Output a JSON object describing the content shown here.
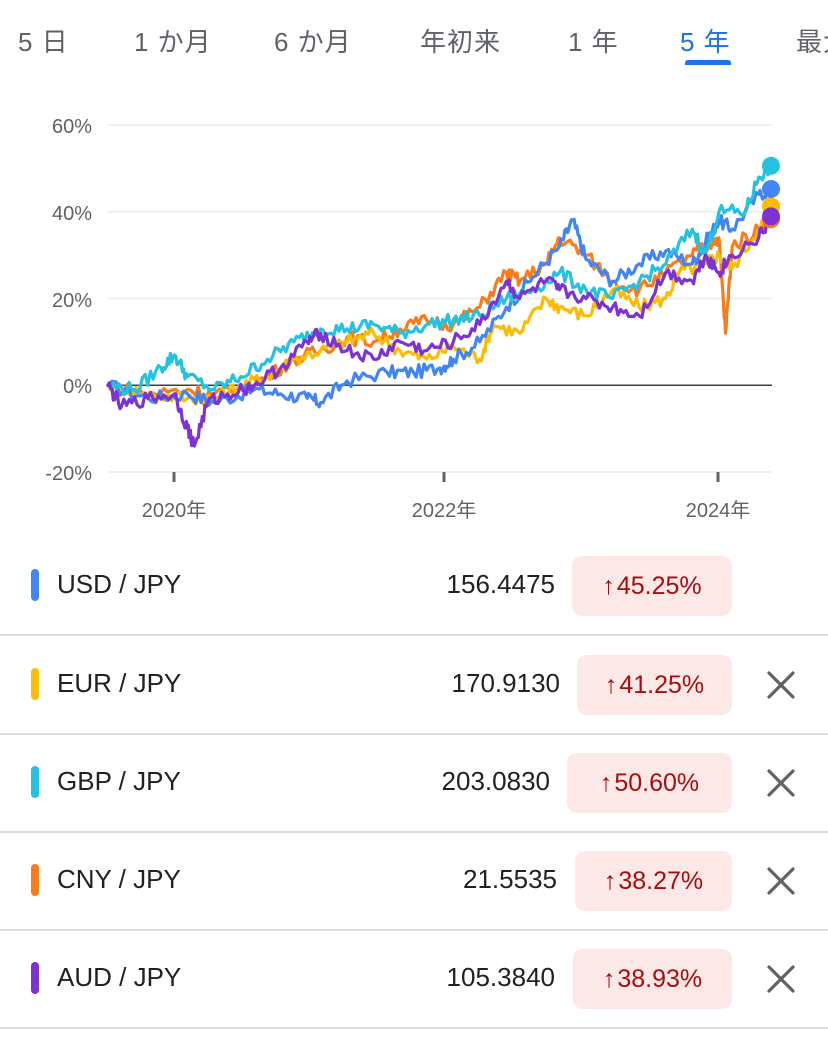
{
  "tabs": [
    "5 日",
    "1 か月",
    "6 か月",
    "年初来",
    "1 年",
    "5 年",
    "最大"
  ],
  "active_tab": "5 年",
  "colors": {
    "usd": "#4285f4",
    "eur": "#fbbc04",
    "gbp": "#24c1e0",
    "cny": "#fa7b17",
    "aud": "#7e32d3",
    "badge_bg": "#fce8e6",
    "badge_text": "#a50e0e",
    "active": "#1a73e8"
  },
  "chart_data": {
    "type": "line",
    "x_ticks": [
      "2020年",
      "2022年",
      "2024年"
    ],
    "y_ticks": [
      "60%",
      "40%",
      "20%",
      "0%",
      "-20%"
    ],
    "ylim": [
      -20,
      60
    ],
    "xlim": [
      2019.4,
      2024.4
    ],
    "grid": true,
    "series": [
      {
        "name": "USD / JPY",
        "color": "#4285f4",
        "points": [
          [
            2019.4,
            0
          ],
          [
            2019.7,
            -3
          ],
          [
            2020.0,
            -2
          ],
          [
            2020.2,
            -4
          ],
          [
            2020.5,
            -1
          ],
          [
            2020.7,
            -2
          ],
          [
            2020.9,
            -3
          ],
          [
            2021.0,
            -4
          ],
          [
            2021.2,
            1
          ],
          [
            2021.5,
            3
          ],
          [
            2021.7,
            3
          ],
          [
            2021.9,
            4
          ],
          [
            2022.0,
            6
          ],
          [
            2022.2,
            10
          ],
          [
            2022.4,
            18
          ],
          [
            2022.6,
            25
          ],
          [
            2022.8,
            32
          ],
          [
            2022.9,
            38
          ],
          [
            2023.0,
            29
          ],
          [
            2023.2,
            24
          ],
          [
            2023.4,
            28
          ],
          [
            2023.6,
            31
          ],
          [
            2023.8,
            28
          ],
          [
            2023.9,
            33
          ],
          [
            2024.0,
            38
          ],
          [
            2024.1,
            36
          ],
          [
            2024.3,
            44
          ],
          [
            2024.4,
            45.25
          ]
        ]
      },
      {
        "name": "EUR / JPY",
        "color": "#fbbc04",
        "points": [
          [
            2019.4,
            0
          ],
          [
            2019.7,
            -2
          ],
          [
            2020.0,
            -3
          ],
          [
            2020.2,
            -3
          ],
          [
            2020.4,
            0
          ],
          [
            2020.6,
            2
          ],
          [
            2020.8,
            6
          ],
          [
            2021.0,
            8
          ],
          [
            2021.2,
            10
          ],
          [
            2021.4,
            12
          ],
          [
            2021.6,
            8
          ],
          [
            2021.8,
            6
          ],
          [
            2022.0,
            9
          ],
          [
            2022.2,
            6
          ],
          [
            2022.3,
            14
          ],
          [
            2022.5,
            12
          ],
          [
            2022.7,
            20
          ],
          [
            2022.8,
            18
          ],
          [
            2023.0,
            16
          ],
          [
            2023.2,
            22
          ],
          [
            2023.4,
            18
          ],
          [
            2023.6,
            20
          ],
          [
            2023.7,
            26
          ],
          [
            2023.9,
            28
          ],
          [
            2024.0,
            30
          ],
          [
            2024.1,
            27
          ],
          [
            2024.3,
            36
          ],
          [
            2024.4,
            41.25
          ]
        ]
      },
      {
        "name": "GBP / JPY",
        "color": "#24c1e0",
        "points": [
          [
            2019.4,
            0
          ],
          [
            2019.6,
            -1
          ],
          [
            2019.8,
            4
          ],
          [
            2019.9,
            7
          ],
          [
            2020.0,
            2
          ],
          [
            2020.2,
            -1
          ],
          [
            2020.4,
            2
          ],
          [
            2020.6,
            6
          ],
          [
            2020.8,
            10
          ],
          [
            2021.0,
            13
          ],
          [
            2021.2,
            13
          ],
          [
            2021.4,
            14
          ],
          [
            2021.6,
            12
          ],
          [
            2021.8,
            14
          ],
          [
            2022.0,
            15
          ],
          [
            2022.2,
            16
          ],
          [
            2022.4,
            20
          ],
          [
            2022.6,
            22
          ],
          [
            2022.8,
            26
          ],
          [
            2023.0,
            22
          ],
          [
            2023.2,
            20
          ],
          [
            2023.4,
            24
          ],
          [
            2023.6,
            28
          ],
          [
            2023.8,
            36
          ],
          [
            2023.9,
            30
          ],
          [
            2024.0,
            40
          ],
          [
            2024.2,
            40
          ],
          [
            2024.3,
            48
          ],
          [
            2024.4,
            50.6
          ]
        ]
      },
      {
        "name": "CNY / JPY",
        "color": "#fa7b17",
        "points": [
          [
            2019.4,
            0
          ],
          [
            2019.7,
            -2
          ],
          [
            2020.0,
            -1
          ],
          [
            2020.2,
            -2
          ],
          [
            2020.4,
            -1
          ],
          [
            2020.6,
            2
          ],
          [
            2020.8,
            6
          ],
          [
            2021.0,
            8
          ],
          [
            2021.2,
            11
          ],
          [
            2021.4,
            10
          ],
          [
            2021.6,
            13
          ],
          [
            2021.8,
            15
          ],
          [
            2022.0,
            14
          ],
          [
            2022.2,
            18
          ],
          [
            2022.4,
            26
          ],
          [
            2022.5,
            24
          ],
          [
            2022.7,
            28
          ],
          [
            2022.8,
            34
          ],
          [
            2023.0,
            30
          ],
          [
            2023.2,
            24
          ],
          [
            2023.4,
            22
          ],
          [
            2023.6,
            26
          ],
          [
            2023.8,
            30
          ],
          [
            2023.9,
            32
          ],
          [
            2024.0,
            34
          ],
          [
            2024.05,
            12
          ],
          [
            2024.1,
            32
          ],
          [
            2024.3,
            36
          ],
          [
            2024.4,
            38.27
          ]
        ]
      },
      {
        "name": "AUD / JPY",
        "color": "#7e32d3",
        "points": [
          [
            2019.4,
            0
          ],
          [
            2019.5,
            -5
          ],
          [
            2019.7,
            -3
          ],
          [
            2019.9,
            -2
          ],
          [
            2020.0,
            -10
          ],
          [
            2020.05,
            -14
          ],
          [
            2020.15,
            -4
          ],
          [
            2020.3,
            -2
          ],
          [
            2020.5,
            0
          ],
          [
            2020.7,
            4
          ],
          [
            2020.9,
            10
          ],
          [
            2021.0,
            12
          ],
          [
            2021.2,
            8
          ],
          [
            2021.4,
            6
          ],
          [
            2021.6,
            10
          ],
          [
            2021.8,
            8
          ],
          [
            2022.0,
            10
          ],
          [
            2022.2,
            14
          ],
          [
            2022.4,
            24
          ],
          [
            2022.5,
            20
          ],
          [
            2022.7,
            24
          ],
          [
            2022.8,
            22
          ],
          [
            2023.0,
            20
          ],
          [
            2023.2,
            18
          ],
          [
            2023.4,
            16
          ],
          [
            2023.6,
            26
          ],
          [
            2023.8,
            24
          ],
          [
            2023.9,
            30
          ],
          [
            2024.0,
            26
          ],
          [
            2024.1,
            30
          ],
          [
            2024.3,
            34
          ],
          [
            2024.4,
            38.93
          ]
        ]
      }
    ]
  },
  "rows": [
    {
      "pair": "USD / JPY",
      "value": "156.4475",
      "arrow": "↑",
      "change": "45.25%",
      "color": "#4285f4",
      "closable": false
    },
    {
      "pair": "EUR / JPY",
      "value": "170.9130",
      "arrow": "↑",
      "change": "41.25%",
      "color": "#fbbc04",
      "closable": true
    },
    {
      "pair": "GBP / JPY",
      "value": "203.0830",
      "arrow": "↑",
      "change": "50.60%",
      "color": "#24c1e0",
      "closable": true
    },
    {
      "pair": "CNY / JPY",
      "value": "21.5535",
      "arrow": "↑",
      "change": "38.27%",
      "color": "#fa7b17",
      "closable": true
    },
    {
      "pair": "AUD / JPY",
      "value": "105.3840",
      "arrow": "↑",
      "change": "38.93%",
      "color": "#7e32d3",
      "closable": true
    }
  ]
}
